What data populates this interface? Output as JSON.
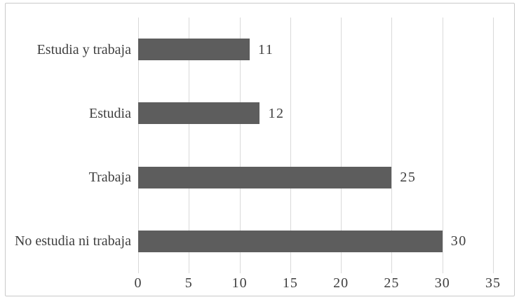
{
  "chart_data": {
    "type": "bar",
    "orientation": "horizontal",
    "title": "",
    "xlabel": "",
    "ylabel": "",
    "categories": [
      "Estudia y trabaja",
      "Estudia",
      "Trabaja",
      "No estudia ni trabaja"
    ],
    "values": [
      11,
      12,
      25,
      30
    ],
    "data_labels": [
      "11",
      "12",
      "25",
      "30"
    ],
    "x_ticks": [
      "0",
      "5",
      "10",
      "15",
      "20",
      "25",
      "30",
      "35"
    ],
    "x_tick_values": [
      0,
      5,
      10,
      15,
      20,
      25,
      30,
      35
    ],
    "xlim": [
      0,
      35
    ],
    "grid": "vertical-only",
    "legend": "none",
    "colors": {
      "bar": "#5d5d5d",
      "gridline": "#d9d9d9",
      "text": "#3f3f3f",
      "frame_border": "#c9c9c9",
      "background": "#ffffff"
    }
  }
}
